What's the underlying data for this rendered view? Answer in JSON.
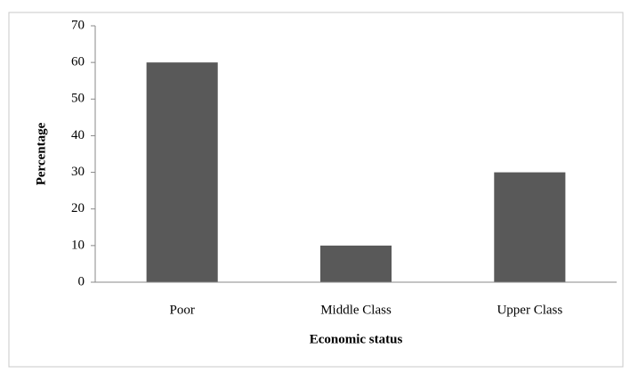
{
  "chart_data": {
    "type": "bar",
    "x_label": "Economic status",
    "y_label": "Percentage",
    "categories": [
      "Poor",
      "Middle Class",
      "Upper Class"
    ],
    "values": [
      60,
      10,
      30
    ],
    "color": "#595959",
    "ylim": [
      0,
      70
    ],
    "yticks": [
      0,
      10,
      20,
      30,
      40,
      50,
      60,
      70
    ],
    "grid": false
  }
}
